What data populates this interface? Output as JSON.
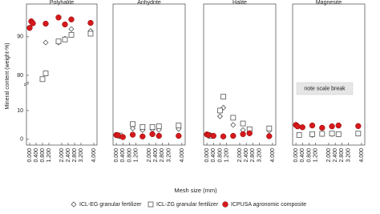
{
  "chart_data": {
    "type": "scatter",
    "y_label": "Mineral content (weight-%)",
    "x_label": "Mesh size (mm)",
    "annotation": "note scale break",
    "ylim": [
      -2,
      98.5
    ],
    "ybreak": [
      19,
      78
    ],
    "yticks": [
      0,
      10,
      80,
      90
    ],
    "xlim": [
      -0.2,
      4.2
    ],
    "xticks": [
      {
        "value": 0,
        "label": "0.000"
      },
      {
        "value": 0.4,
        "label": "0.400"
      },
      {
        "value": 0.8,
        "label": "0.800"
      },
      {
        "value": 1.2,
        "label": "1.200"
      },
      {
        "value": 2.0,
        "label": "2.000"
      },
      {
        "value": 2.4,
        "label": "2.400"
      },
      {
        "value": 2.8,
        "label": "2.800"
      },
      {
        "value": 3.2,
        "label": "3.200"
      },
      {
        "value": 4.0,
        "label": "4.000"
      }
    ],
    "series": [
      {
        "name": "ICL-EG granular fertilizer",
        "color": "#555555",
        "marker": "diamond"
      },
      {
        "name": "ICL-ZG granular fertilizer",
        "color": "#555555",
        "marker": "square"
      },
      {
        "name": "ICPUSA agronomic composite",
        "color": "#d7191c",
        "marker": "circle"
      }
    ],
    "panels": [
      {
        "title": "Polyhalite",
        "data": [
          {
            "x": [
              1.0,
              1.8,
              2.2,
              2.6,
              3.8
            ],
            "values": [
              88.5,
              88.5,
              89.5,
              92,
              91.5
            ]
          },
          {
            "x": [
              0.8,
              1.0,
              1.8,
              2.2,
              2.6,
              3.8
            ],
            "values": [
              79,
              80.5,
              88.8,
              89.3,
              90.5,
              90.8
            ]
          },
          {
            "x": [
              0,
              0.1,
              0.2,
              1.0,
              1.8,
              2.2,
              2.6,
              3.8
            ],
            "values": [
              92.3,
              94,
              93.5,
              93.4,
              95,
              93.2,
              94.5,
              93.6
            ]
          }
        ]
      },
      {
        "title": "Anhydrite",
        "data": [
          {
            "x": [
              0.2,
              1.0,
              1.6,
              2.2,
              2.6,
              3.8
            ],
            "values": [
              1.0,
              3.8,
              3.2,
              3.5,
              3.3,
              3.6
            ]
          },
          {
            "x": [
              0.2,
              1.0,
              1.6,
              2.2,
              2.6,
              3.8
            ],
            "values": [
              1.3,
              5.3,
              4.3,
              4.3,
              4.5,
              4.8
            ]
          },
          {
            "x": [
              0,
              0.1,
              0.4,
              1.0,
              1.6,
              2.2,
              2.6,
              3.8
            ],
            "values": [
              1.5,
              1.4,
              0.8,
              1.6,
              1.0,
              1.8,
              1.2,
              1.2
            ]
          }
        ]
      },
      {
        "title": "Halite",
        "data": [
          {
            "x": [
              0.2,
              0.8,
              1.0,
              1.6,
              2.2,
              2.6,
              3.8
            ],
            "values": [
              1.5,
              8.0,
              11.0,
              5.0,
              3.2,
              3.5,
              3.0
            ]
          },
          {
            "x": [
              0.2,
              0.8,
              1.0,
              1.6,
              2.2,
              2.6,
              3.8
            ],
            "values": [
              1.2,
              10.0,
              14.8,
              7.5,
              5.5,
              3.5,
              3.8
            ]
          },
          {
            "x": [
              0,
              0.1,
              0.4,
              1.0,
              1.6,
              2.2,
              2.6,
              3.8
            ],
            "values": [
              1.7,
              1.5,
              1.2,
              1.0,
              1.2,
              1.8,
              2.1,
              1.1
            ]
          }
        ]
      },
      {
        "title": "Magnesite",
        "data": [
          {
            "x": [
              0.2,
              1.0,
              1.6,
              2.2,
              2.6,
              3.8
            ],
            "values": [
              1.5,
              1.5,
              1.8,
              1.8,
              1.7,
              2.0
            ]
          },
          {
            "x": [
              0.2,
              1.0,
              1.6,
              2.2,
              2.6,
              3.8
            ],
            "values": [
              1.5,
              1.8,
              1.9,
              2.0,
              1.8,
              2.0
            ]
          },
          {
            "x": [
              0,
              0.1,
              0.4,
              1.0,
              1.6,
              2.2,
              2.6,
              3.8
            ],
            "values": [
              5.0,
              4.5,
              4.2,
              4.8,
              4.0,
              4.5,
              4.8,
              4.6
            ]
          }
        ]
      }
    ]
  }
}
